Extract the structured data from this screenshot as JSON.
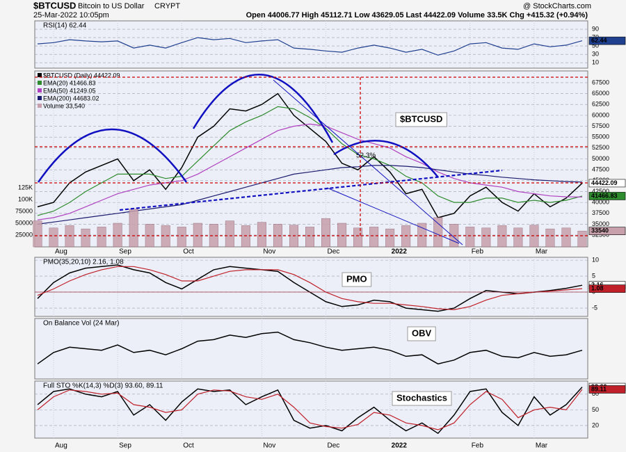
{
  "header": {
    "symbol": "$BTCUSD",
    "name": "Bitcoin to US Dollar",
    "exchange": "CRYPT",
    "date": "25-Mar-2022 10:05pm",
    "quote": "Open 44006.77  High 45112.71  Low 43629.05  Last 44422.09  Volume 33.5K  Chg +415.32 (+0.94%)",
    "brand": "@ StockCharts.com"
  },
  "chart_data": [
    {
      "type": "line",
      "title": "RSI(14) 62.44",
      "color": "#1f3f8f",
      "last_label": "62.44",
      "values": [
        55,
        58,
        65,
        62,
        60,
        62,
        45,
        52,
        45,
        58,
        70,
        65,
        68,
        58,
        62,
        65,
        45,
        42,
        38,
        35,
        45,
        52,
        45,
        35,
        42,
        28,
        38,
        55,
        58,
        45,
        42,
        55,
        48,
        52,
        62.44
      ],
      "ylim": [
        -3,
        110
      ],
      "yticks": [
        10,
        30,
        50,
        70,
        90
      ],
      "grid": true
    },
    {
      "type": "stock",
      "categories": [
        null,
        "Aug",
        null,
        null,
        null,
        "Sep",
        null,
        null,
        null,
        "Oct",
        null,
        null,
        null,
        null,
        "Nov",
        null,
        null,
        null,
        "Dec",
        null,
        null,
        null,
        "2022",
        null,
        null,
        null,
        null,
        "Feb",
        null,
        null,
        null,
        "Mar",
        null,
        null,
        null
      ],
      "series": [
        {
          "name": "$BTCUSD (Daily) 44422.09",
          "color": "#000000",
          "last_label": "44422.09",
          "values": [
            39000,
            40000,
            44500,
            47000,
            48500,
            50000,
            45000,
            47500,
            43000,
            48000,
            55000,
            57500,
            61500,
            61000,
            62500,
            65000,
            60000,
            57000,
            54000,
            49000,
            47500,
            50500,
            47000,
            42000,
            43000,
            36500,
            37500,
            41500,
            43500,
            40000,
            38000,
            42000,
            39000,
            41000,
            44422.09
          ]
        },
        {
          "name": "EMA(20) 41466.83",
          "color": "#2e8b2e",
          "last_label": "41466.83",
          "values": [
            37000,
            38000,
            40000,
            42500,
            44500,
            46500,
            46500,
            46500,
            45500,
            46000,
            49500,
            53000,
            56500,
            58500,
            60000,
            62000,
            61500,
            59500,
            57000,
            53500,
            51000,
            50000,
            48500,
            46000,
            44500,
            41500,
            40000,
            40000,
            41000,
            41000,
            40000,
            40500,
            40000,
            40500,
            41466.83
          ]
        },
        {
          "name": "EMA(50) 41249.05",
          "color": "#b040c0",
          "values": [
            36000,
            36500,
            37500,
            39000,
            40500,
            42000,
            43000,
            44000,
            44500,
            45000,
            46500,
            48500,
            50500,
            52500,
            54500,
            56500,
            57500,
            58000,
            57500,
            56000,
            54500,
            53500,
            52500,
            50500,
            49000,
            47000,
            45500,
            44500,
            44000,
            43500,
            42500,
            42000,
            41500,
            41300,
            41249.05
          ]
        },
        {
          "name": "EMA(200) 44683.02",
          "color": "#1a1a6e",
          "values": [
            35000,
            35500,
            36000,
            36500,
            37000,
            37500,
            38000,
            38500,
            39000,
            39500,
            40500,
            41500,
            42500,
            43500,
            44500,
            45500,
            46500,
            47000,
            47500,
            48000,
            48200,
            48500,
            48500,
            48300,
            48000,
            47500,
            47000,
            46500,
            46200,
            45800,
            45500,
            45200,
            45000,
            44800,
            44683.02
          ]
        },
        {
          "name": "Volume 33,540",
          "color": "#c8a0ab",
          "axis": "y2",
          "last_label": "33540",
          "values": [
            55000,
            40000,
            45000,
            38000,
            42000,
            50000,
            80000,
            48000,
            45000,
            42000,
            50000,
            48000,
            55000,
            45000,
            52000,
            48000,
            46000,
            42000,
            60000,
            50000,
            40000,
            42000,
            38000,
            45000,
            50000,
            62000,
            48000,
            42000,
            40000,
            45000,
            40000,
            46000,
            38000,
            40000,
            33540
          ]
        }
      ],
      "ylim": [
        29800,
        70200
      ],
      "yticks": [
        32500,
        35000,
        37500,
        40000,
        42500,
        45000,
        47500,
        50000,
        52500,
        55000,
        57500,
        60000,
        62500,
        65000,
        67500
      ],
      "y2lim": [
        0,
        372000
      ],
      "y2ticks": [
        25000,
        50000,
        75000,
        {
          "value": 100000,
          "label": "100K"
        },
        {
          "value": 125000,
          "label": "125K"
        }
      ],
      "annotations": [
        "$BTCUSD",
        "52.3%"
      ],
      "grid": true
    },
    {
      "type": "line",
      "title": "PMO(35,20,10) 2.16, 1.08",
      "annotations": [
        "PMO"
      ],
      "series": [
        {
          "color": "#000000",
          "last_label": "2.16",
          "values": [
            -2,
            3,
            6,
            7.5,
            8,
            8.5,
            7,
            6,
            3,
            1,
            4,
            7,
            8,
            7.5,
            7,
            6.5,
            3,
            0,
            -3,
            -4.5,
            -4,
            -2.5,
            -3,
            -5,
            -5.5,
            -6,
            -5,
            -2,
            0.5,
            0,
            -0.5,
            0,
            0.5,
            1.2,
            2.16
          ]
        },
        {
          "color": "#c0202a",
          "last_label": "1.08",
          "values": [
            -1,
            1,
            3.5,
            5.5,
            7,
            8,
            8,
            7,
            5.5,
            3.5,
            3.5,
            5,
            6.5,
            7,
            7,
            7,
            5.5,
            3,
            0,
            -2,
            -3,
            -3.5,
            -3.5,
            -4,
            -4.5,
            -5.2,
            -5.5,
            -4.5,
            -2.5,
            -1,
            -0.5,
            0,
            0.3,
            0.7,
            1.08
          ]
        }
      ],
      "ylim": [
        -7.6,
        10.9
      ],
      "yticks": [
        -5,
        0,
        5,
        10
      ],
      "grid": true
    },
    {
      "type": "line",
      "title": "On Balance Vol (24 Mar)",
      "annotations": [
        "OBV"
      ],
      "color": "#000000",
      "values": [
        40,
        55,
        62,
        60,
        58,
        65,
        55,
        58,
        52,
        60,
        70,
        72,
        78,
        75,
        80,
        82,
        72,
        68,
        62,
        58,
        60,
        62,
        58,
        50,
        52,
        40,
        45,
        55,
        58,
        50,
        48,
        55,
        50,
        52,
        58
      ],
      "ylim": [
        20,
        100
      ]
    },
    {
      "type": "line",
      "title": "Full STO %K(14,3) %D(3) 93.60, 89.11",
      "annotations": [
        "Stochastics"
      ],
      "series": [
        {
          "color": "#000000",
          "last_label": "93.60",
          "values": [
            60,
            85,
            90,
            80,
            75,
            85,
            40,
            60,
            30,
            65,
            90,
            85,
            88,
            60,
            75,
            88,
            30,
            15,
            20,
            10,
            35,
            55,
            30,
            10,
            25,
            5,
            40,
            85,
            90,
            45,
            20,
            75,
            40,
            60,
            93.6
          ]
        },
        {
          "color": "#c0202a",
          "last_label": "89.11",
          "values": [
            50,
            75,
            88,
            85,
            80,
            82,
            60,
            55,
            45,
            50,
            80,
            88,
            86,
            75,
            70,
            80,
            55,
            25,
            18,
            15,
            22,
            45,
            40,
            25,
            20,
            12,
            25,
            60,
            85,
            70,
            35,
            50,
            55,
            50,
            89.11
          ]
        }
      ],
      "ylim": [
        -4,
        105
      ],
      "yticks": [
        20,
        50,
        80
      ],
      "grid": true
    }
  ]
}
